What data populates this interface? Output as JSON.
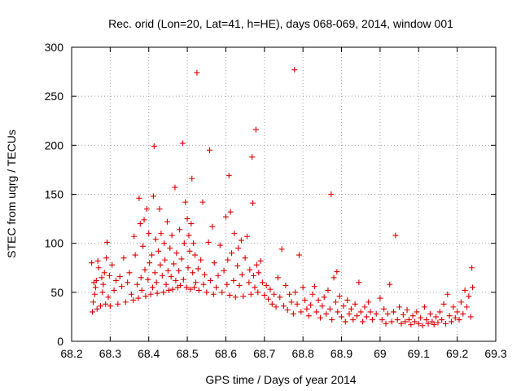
{
  "chart_data": {
    "type": "scatter",
    "title": "Rec. orid (Lon=20, Lat=41, h=HE), days 068-069, 2014, window 001",
    "xlabel": "GPS time / Days of year 2014",
    "ylabel": "STEC from uqrg / TECUs",
    "xlim": [
      68.2,
      69.3
    ],
    "ylim": [
      0,
      300
    ],
    "xticks": [
      "68.2",
      "68.3",
      "68.4",
      "68.5",
      "68.6",
      "68.7",
      "68.8",
      "68.9",
      "69",
      "69.1",
      "69.2",
      "69.3"
    ],
    "yticks": [
      "0",
      "50",
      "100",
      "150",
      "200",
      "250",
      "300"
    ],
    "grid": true,
    "marker": "plus",
    "color": "#dd0000",
    "series": [
      {
        "points": [
          [
            68.252,
            80
          ],
          [
            68.254,
            30
          ],
          [
            68.256,
            40
          ],
          [
            68.258,
            60
          ],
          [
            68.26,
            48
          ],
          [
            68.262,
            55
          ],
          [
            68.264,
            62
          ],
          [
            68.266,
            33
          ],
          [
            68.268,
            82
          ],
          [
            68.27,
            75
          ],
          [
            68.275,
            36
          ],
          [
            68.278,
            65
          ],
          [
            68.28,
            50
          ],
          [
            68.282,
            58
          ],
          [
            68.285,
            70
          ],
          [
            68.288,
            38
          ],
          [
            68.29,
            85
          ],
          [
            68.292,
            101
          ],
          [
            68.295,
            45
          ],
          [
            68.298,
            67
          ],
          [
            68.3,
            36
          ],
          [
            68.305,
            78
          ],
          [
            68.31,
            52
          ],
          [
            68.315,
            62
          ],
          [
            68.32,
            38
          ],
          [
            68.325,
            66
          ],
          [
            68.33,
            56
          ],
          [
            68.335,
            85
          ],
          [
            68.34,
            40
          ],
          [
            68.345,
            60
          ],
          [
            68.35,
            70
          ],
          [
            68.355,
            48
          ],
          [
            68.36,
            42
          ],
          [
            68.362,
            107
          ],
          [
            68.365,
            88
          ],
          [
            68.37,
            58
          ],
          [
            68.373,
            44
          ],
          [
            68.375,
            146
          ],
          [
            68.378,
            120
          ],
          [
            68.38,
            65
          ],
          [
            68.382,
            52
          ],
          [
            68.385,
            97
          ],
          [
            68.388,
            124
          ],
          [
            68.39,
            73
          ],
          [
            68.392,
            46
          ],
          [
            68.395,
            135
          ],
          [
            68.398,
            63
          ],
          [
            68.4,
            110
          ],
          [
            68.402,
            80
          ],
          [
            68.405,
            48
          ],
          [
            68.408,
            88
          ],
          [
            68.41,
            55
          ],
          [
            68.412,
            148
          ],
          [
            68.414,
            199
          ],
          [
            68.416,
            70
          ],
          [
            68.418,
            104
          ],
          [
            68.42,
            60
          ],
          [
            68.422,
            49
          ],
          [
            68.425,
            92
          ],
          [
            68.428,
            135
          ],
          [
            68.43,
            78
          ],
          [
            68.432,
            110
          ],
          [
            68.435,
            67
          ],
          [
            68.438,
            50
          ],
          [
            68.44,
            100
          ],
          [
            68.442,
            83
          ],
          [
            68.445,
            58
          ],
          [
            68.448,
            122
          ],
          [
            68.45,
            72
          ],
          [
            68.452,
            52
          ],
          [
            68.455,
            95
          ],
          [
            68.458,
            66
          ],
          [
            68.46,
            108
          ],
          [
            68.462,
            53
          ],
          [
            68.465,
            79
          ],
          [
            68.468,
            157
          ],
          [
            68.47,
            62
          ],
          [
            68.472,
            90
          ],
          [
            68.475,
            55
          ],
          [
            68.478,
            72
          ],
          [
            68.48,
            114
          ],
          [
            68.482,
            57
          ],
          [
            68.485,
            84
          ],
          [
            68.488,
            202
          ],
          [
            68.49,
            63
          ],
          [
            68.492,
            100
          ],
          [
            68.495,
            142
          ],
          [
            68.498,
            55
          ],
          [
            68.5,
            125
          ],
          [
            68.502,
            75
          ],
          [
            68.504,
            108
          ],
          [
            68.506,
            92
          ],
          [
            68.508,
            53
          ],
          [
            68.51,
            120
          ],
          [
            68.512,
            166
          ],
          [
            68.514,
            70
          ],
          [
            68.516,
            100
          ],
          [
            68.518,
            55
          ],
          [
            68.52,
            88
          ],
          [
            68.522,
            60
          ],
          [
            68.525,
            274
          ],
          [
            68.528,
            74
          ],
          [
            68.53,
            52
          ],
          [
            68.535,
            83
          ],
          [
            68.54,
            142
          ],
          [
            68.542,
            58
          ],
          [
            68.545,
            68
          ],
          [
            68.55,
            50
          ],
          [
            68.555,
            101
          ],
          [
            68.558,
            195
          ],
          [
            68.56,
            62
          ],
          [
            68.565,
            117
          ],
          [
            68.568,
            48
          ],
          [
            68.57,
            80
          ],
          [
            68.575,
            55
          ],
          [
            68.58,
            67
          ],
          [
            68.585,
            98
          ],
          [
            68.59,
            50
          ],
          [
            68.595,
            72
          ],
          [
            68.6,
            127
          ],
          [
            68.603,
            58
          ],
          [
            68.605,
            83
          ],
          [
            68.608,
            169
          ],
          [
            68.61,
            47
          ],
          [
            68.612,
            132
          ],
          [
            68.615,
            90
          ],
          [
            68.62,
            62
          ],
          [
            68.622,
            110
          ],
          [
            68.625,
            45
          ],
          [
            68.63,
            77
          ],
          [
            68.632,
            95
          ],
          [
            68.635,
            57
          ],
          [
            68.64,
            103
          ],
          [
            68.642,
            68
          ],
          [
            68.645,
            46
          ],
          [
            68.65,
            85
          ],
          [
            68.655,
            107
          ],
          [
            68.66,
            60
          ],
          [
            68.662,
            73
          ],
          [
            68.665,
            48
          ],
          [
            68.668,
            188
          ],
          [
            68.67,
            141
          ],
          [
            68.672,
            67
          ],
          [
            68.675,
            55
          ],
          [
            68.678,
            216
          ],
          [
            68.68,
            78
          ],
          [
            68.683,
            50
          ],
          [
            68.685,
            70
          ],
          [
            68.69,
            82
          ],
          [
            68.695,
            60
          ],
          [
            68.7,
            47
          ],
          [
            68.705,
            57
          ],
          [
            68.71,
            43
          ],
          [
            68.715,
            53
          ],
          [
            68.72,
            38
          ],
          [
            68.725,
            48
          ],
          [
            68.73,
            35
          ],
          [
            68.735,
            65
          ],
          [
            68.74,
            45
          ],
          [
            68.745,
            94
          ],
          [
            68.75,
            36
          ],
          [
            68.755,
            57
          ],
          [
            68.76,
            32
          ],
          [
            68.765,
            48
          ],
          [
            68.77,
            40
          ],
          [
            68.775,
            28
          ],
          [
            68.778,
            277
          ],
          [
            68.78,
            50
          ],
          [
            68.785,
            38
          ],
          [
            68.79,
            88
          ],
          [
            68.795,
            30
          ],
          [
            68.8,
            55
          ],
          [
            68.805,
            42
          ],
          [
            68.81,
            33
          ],
          [
            68.815,
            26
          ],
          [
            68.82,
            37
          ],
          [
            68.825,
            48
          ],
          [
            68.83,
            56
          ],
          [
            68.835,
            30
          ],
          [
            68.84,
            42
          ],
          [
            68.845,
            24
          ],
          [
            68.85,
            36
          ],
          [
            68.855,
            45
          ],
          [
            68.86,
            28
          ],
          [
            68.865,
            52
          ],
          [
            68.87,
            33
          ],
          [
            68.873,
            150
          ],
          [
            68.875,
            22
          ],
          [
            68.88,
            65
          ],
          [
            68.885,
            40
          ],
          [
            68.888,
            71
          ],
          [
            68.89,
            30
          ],
          [
            68.895,
            46
          ],
          [
            68.9,
            25
          ],
          [
            68.905,
            36
          ],
          [
            68.91,
            20
          ],
          [
            68.915,
            42
          ],
          [
            68.92,
            28
          ],
          [
            68.925,
            33
          ],
          [
            68.93,
            22
          ],
          [
            68.935,
            38
          ],
          [
            68.94,
            26
          ],
          [
            68.945,
            60
          ],
          [
            68.95,
            30
          ],
          [
            68.955,
            20
          ],
          [
            68.96,
            35
          ],
          [
            68.965,
            25
          ],
          [
            68.97,
            40
          ],
          [
            68.975,
            30
          ],
          [
            68.98,
            22
          ],
          [
            68.99,
            28
          ],
          [
            69.0,
            44
          ],
          [
            69.005,
            22
          ],
          [
            69.01,
            33
          ],
          [
            69.015,
            18
          ],
          [
            69.02,
            28
          ],
          [
            69.025,
            58
          ],
          [
            69.03,
            20
          ],
          [
            69.035,
            30
          ],
          [
            69.04,
            108
          ],
          [
            69.045,
            22
          ],
          [
            69.05,
            35
          ],
          [
            69.055,
            18
          ],
          [
            69.06,
            27
          ],
          [
            69.065,
            20
          ],
          [
            69.07,
            32
          ],
          [
            69.075,
            22
          ],
          [
            69.08,
            17
          ],
          [
            69.085,
            26
          ],
          [
            69.09,
            20
          ],
          [
            69.095,
            30
          ],
          [
            69.1,
            18
          ],
          [
            69.105,
            24
          ],
          [
            69.11,
            16
          ],
          [
            69.115,
            35
          ],
          [
            69.12,
            22
          ],
          [
            69.125,
            18
          ],
          [
            69.13,
            28
          ],
          [
            69.135,
            20
          ],
          [
            69.14,
            17
          ],
          [
            69.145,
            25
          ],
          [
            69.15,
            19
          ],
          [
            69.155,
            30
          ],
          [
            69.16,
            22
          ],
          [
            69.165,
            38
          ],
          [
            69.17,
            18
          ],
          [
            69.175,
            48
          ],
          [
            69.18,
            26
          ],
          [
            69.185,
            20
          ],
          [
            69.19,
            35
          ],
          [
            69.195,
            24
          ],
          [
            69.2,
            30
          ],
          [
            69.205,
            22
          ],
          [
            69.21,
            40
          ],
          [
            69.215,
            28
          ],
          [
            69.22,
            52
          ],
          [
            69.225,
            35
          ],
          [
            69.23,
            46
          ],
          [
            69.235,
            25
          ],
          [
            69.238,
            75
          ],
          [
            69.24,
            55
          ]
        ]
      }
    ]
  }
}
